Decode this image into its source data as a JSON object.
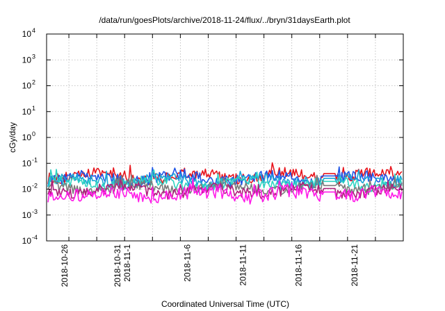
{
  "chart_data": {
    "type": "line",
    "title": "/data/run/goesPlots/archive/2018-11-24/flux/../bryn/31daysEarth.plot",
    "xlabel": "Coordinated Universal Time (UTC)",
    "ylabel": "cGy/day",
    "yscale": "log",
    "ylim": [
      0.0001,
      10000
    ],
    "xlim": [
      "2018-10-24",
      "2018-11-25"
    ],
    "grid": true,
    "legend": "none",
    "y_ticks": [
      {
        "base": "10",
        "exp": "-4",
        "value": 0.0001
      },
      {
        "base": "10",
        "exp": "-3",
        "value": 0.001
      },
      {
        "base": "10",
        "exp": "-2",
        "value": 0.01
      },
      {
        "base": "10",
        "exp": "-1",
        "value": 0.1
      },
      {
        "base": "10",
        "exp": "0",
        "value": 1
      },
      {
        "base": "10",
        "exp": "1",
        "value": 10
      },
      {
        "base": "10",
        "exp": "2",
        "value": 100
      },
      {
        "base": "10",
        "exp": "3",
        "value": 1000
      },
      {
        "base": "10",
        "exp": "4",
        "value": 10000
      }
    ],
    "x_ticks": [
      {
        "date": "2018-10-26",
        "lines": [
          "2018-10-26"
        ]
      },
      {
        "date": "2018-10-31",
        "lines": [
          "2018-10-31",
          "2018-11-1"
        ]
      },
      {
        "date": "2018-11-06",
        "lines": [
          "2018-11-6"
        ]
      },
      {
        "date": "2018-11-11",
        "lines": [
          "2018-11-11"
        ]
      },
      {
        "date": "2018-11-16",
        "lines": [
          "2018-11-16"
        ]
      },
      {
        "date": "2018-11-21",
        "lines": [
          "2018-11-21"
        ]
      }
    ],
    "gap": [
      "2018-11-17T18:00",
      "2018-11-19T00:00"
    ],
    "series": [
      {
        "color": "#e8141c",
        "base": 0.032,
        "jitter": 0.22
      },
      {
        "color": "#1f55e6",
        "base": 0.026,
        "jitter": 0.22
      },
      {
        "color": "#1aa6d6",
        "base": 0.021,
        "jitter": 0.2
      },
      {
        "color": "#2fd3c2",
        "base": 0.016,
        "jitter": 0.2
      },
      {
        "color": "#7a7a7a",
        "base": 0.011,
        "jitter": 0.18
      },
      {
        "color": "#b01e7c",
        "base": 0.0085,
        "jitter": 0.2
      },
      {
        "color": "#ff1ae8",
        "base": 0.0062,
        "jitter": 0.26
      }
    ]
  }
}
